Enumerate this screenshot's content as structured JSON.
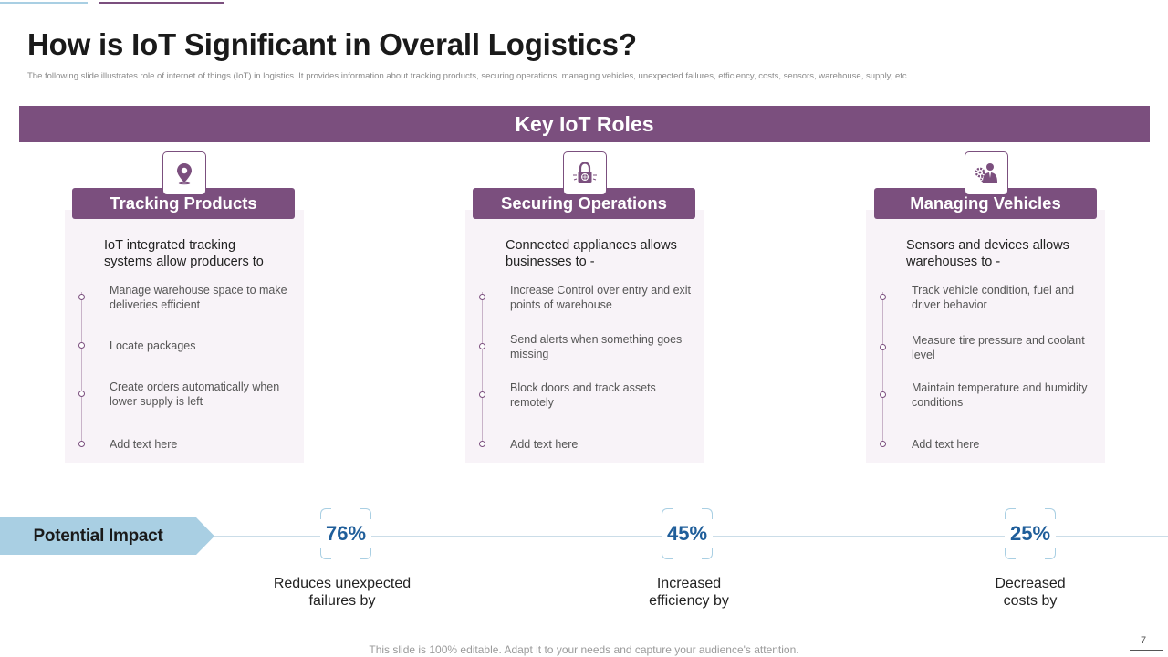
{
  "title": "How is IoT Significant in Overall Logistics?",
  "subtitle": "The following slide illustrates role of internet of things (IoT) in logistics. It provides information about tracking products, securing operations, managing vehicles, unexpected failures, efficiency, costs, sensors, warehouse, supply, etc.",
  "banner": "Key IoT Roles",
  "cards": [
    {
      "icon": "location-pin-icon",
      "title": "Tracking Products",
      "intro": "IoT integrated tracking systems allow producers to",
      "bullets": [
        "Manage warehouse  space to make deliveries  efficient",
        "Locate packages",
        "Create orders automatically when lower supply is left",
        "Add text here"
      ]
    },
    {
      "icon": "padlock-icon",
      "title": "Securing Operations",
      "intro": "Connected appliances allows businesses to -",
      "bullets": [
        "Increase Control over entry and exit points of warehouse",
        "Send alerts when something goes missing",
        "Block doors and track assets remotely",
        "Add text here"
      ]
    },
    {
      "icon": "manager-gear-icon",
      "title": "Managing Vehicles",
      "intro": "Sensors and devices allows warehouses to -",
      "bullets": [
        "Track vehicle condition, fuel and driver  behavior",
        "Measure tire pressure and coolant level",
        "Maintain temperature and humidity conditions",
        "Add text here"
      ]
    }
  ],
  "impact": {
    "label": "Potential Impact",
    "items": [
      {
        "value": "76%",
        "label": "Reduces unexpected failures by"
      },
      {
        "value": "45%",
        "label": "Increased efficiency by"
      },
      {
        "value": "25%",
        "label": "Decreased costs by"
      }
    ]
  },
  "footer": "This slide is 100% editable. Adapt it to your needs and capture your audience's attention.",
  "page_number": "7",
  "colors": {
    "primary": "#7b4f7e",
    "accent_blue": "#a9cfe3",
    "value_blue": "#1f5e9a",
    "card_bg": "#f8f3f8"
  }
}
